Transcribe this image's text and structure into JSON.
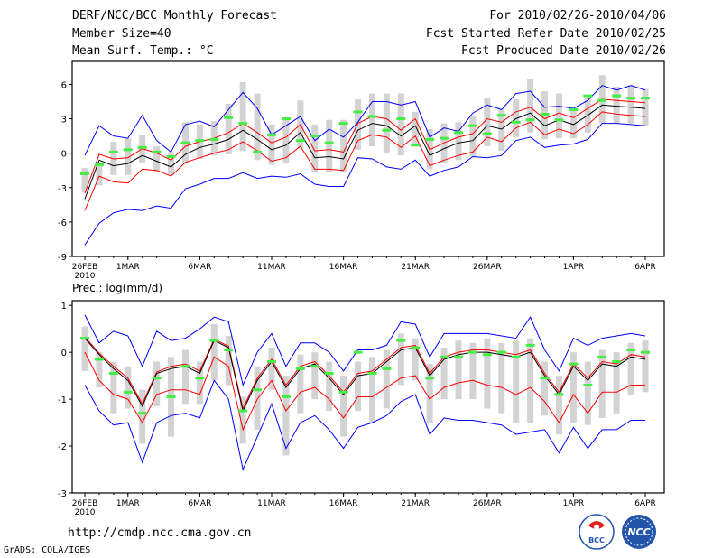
{
  "header": {
    "left": [
      "DERF/NCC/BCC Monthly Forecast",
      "Member Size=40",
      "Mean Surf. Temp.: °C"
    ],
    "right": [
      "For 2010/02/26-2010/04/06",
      "Fcst Started Refer Date 2010/02/25",
      "Fcst Produced Date 2010/02/26"
    ]
  },
  "footer": {
    "url": "http://cmdp.ncc.cma.gov.cn",
    "grads": "GrADS: COLA/IGES"
  },
  "logos": {
    "bcc": "BCC",
    "ncc": "NCC"
  },
  "colors": {
    "bar": "#d3d3d3",
    "median": "#000000",
    "band": "#ff0000",
    "envelope": "#0000ff",
    "observed": "#44ee44"
  },
  "chart_data": [
    {
      "type": "line",
      "title": "Mean Surf. Temp.: °C",
      "ylim": [
        -9,
        8
      ],
      "yticks": [
        6,
        3,
        0,
        -3,
        -6,
        -9
      ],
      "xlim": [
        0,
        39
      ],
      "xticks": [
        {
          "x": 0,
          "label": "26FEB",
          "year": "2010"
        },
        {
          "x": 3,
          "label": "1MAR"
        },
        {
          "x": 8,
          "label": "6MAR"
        },
        {
          "x": 13,
          "label": "11MAR"
        },
        {
          "x": 18,
          "label": "16MAR"
        },
        {
          "x": 23,
          "label": "21MAR"
        },
        {
          "x": 28,
          "label": "26MAR"
        },
        {
          "x": 34,
          "label": "1APR"
        },
        {
          "x": 39,
          "label": "6APR"
        }
      ],
      "series": {
        "median": [
          -4.0,
          -0.6,
          -1.1,
          -0.9,
          -0.2,
          -0.7,
          -1.2,
          -0.1,
          0.5,
          0.8,
          1.2,
          2.0,
          1.2,
          0.3,
          0.7,
          1.8,
          -0.4,
          -0.3,
          -0.5,
          2.0,
          2.6,
          2.4,
          1.5,
          2.4,
          -0.2,
          0.4,
          0.9,
          1.1,
          2.4,
          2.1,
          3.0,
          3.5,
          2.4,
          2.9,
          2.5,
          3.3,
          4.2,
          4.1,
          4.0,
          3.9
        ],
        "upper": [
          -3.5,
          -0.1,
          -0.5,
          -0.4,
          0.4,
          0.0,
          -0.6,
          0.6,
          1.0,
          1.3,
          1.8,
          2.6,
          1.8,
          0.9,
          1.4,
          2.5,
          0.2,
          0.3,
          0.1,
          2.6,
          3.2,
          3.0,
          2.0,
          3.0,
          0.3,
          0.9,
          1.4,
          1.7,
          3.0,
          2.7,
          3.6,
          4.0,
          3.0,
          3.5,
          3.1,
          3.9,
          4.7,
          4.6,
          4.5,
          4.4
        ],
        "lower": [
          -5.0,
          -2.0,
          -2.5,
          -2.6,
          -1.4,
          -1.5,
          -2.0,
          -0.8,
          -0.4,
          0.0,
          0.3,
          1.0,
          0.2,
          -0.7,
          -0.4,
          0.6,
          -1.4,
          -1.4,
          -1.5,
          1.1,
          1.6,
          1.4,
          0.5,
          1.5,
          -1.1,
          -0.6,
          -0.2,
          0.1,
          1.4,
          1.0,
          2.2,
          2.7,
          1.6,
          2.1,
          1.7,
          2.5,
          3.6,
          3.4,
          3.3,
          3.2
        ],
        "max": [
          -0.2,
          2.4,
          1.5,
          1.3,
          3.3,
          1.1,
          0.1,
          2.5,
          2.8,
          2.3,
          3.8,
          5.3,
          3.9,
          1.6,
          2.4,
          3.2,
          1.1,
          2.1,
          1.4,
          2.7,
          4.5,
          4.5,
          4.2,
          4.5,
          1.4,
          2.2,
          1.9,
          3.5,
          4.2,
          3.8,
          5.2,
          5.4,
          4.0,
          4.1,
          3.9,
          4.6,
          5.9,
          5.5,
          5.9,
          5.5
        ],
        "min": [
          -8.0,
          -6.1,
          -5.2,
          -4.9,
          -5.0,
          -4.6,
          -4.8,
          -3.1,
          -2.7,
          -2.2,
          -2.2,
          -1.7,
          -2.2,
          -2.0,
          -2.1,
          -1.8,
          -2.7,
          -2.9,
          -2.9,
          -0.4,
          -0.5,
          -1.2,
          -1.4,
          -0.6,
          -2.0,
          -1.5,
          -1.2,
          -0.3,
          -0.4,
          -0.2,
          1.1,
          1.4,
          0.5,
          0.7,
          0.8,
          1.2,
          2.6,
          2.6,
          2.5,
          2.4
        ],
        "bar_top": [
          -1.3,
          -0.8,
          1.0,
          1.3,
          1.6,
          0.6,
          0.1,
          2.7,
          2.5,
          2.8,
          4.3,
          6.2,
          5.2,
          2.5,
          2.9,
          4.6,
          2.5,
          2.9,
          2.9,
          4.7,
          5.2,
          5.2,
          5.2,
          3.6,
          2.1,
          2.6,
          2.7,
          3.2,
          4.8,
          3.8,
          4.7,
          6.5,
          5.4,
          5.2,
          4.0,
          4.8,
          6.8,
          5.8,
          5.9,
          5.6
        ],
        "bar_bottom": [
          -3.4,
          -2.8,
          -1.9,
          -1.9,
          -0.8,
          -1.7,
          -1.9,
          -0.8,
          -0.5,
          -0.2,
          -0.1,
          0.2,
          -0.6,
          -1.0,
          -0.9,
          0.4,
          -1.6,
          -1.7,
          -1.7,
          0.3,
          0.6,
          0.0,
          -0.2,
          0.6,
          -1.4,
          -0.9,
          -0.6,
          -0.3,
          0.6,
          0.2,
          1.4,
          1.8,
          1.2,
          1.3,
          1.3,
          1.8,
          2.6,
          2.6,
          2.6,
          2.4
        ],
        "observed": [
          -1.8,
          -1.0,
          0.1,
          0.3,
          0.5,
          0.1,
          -0.3,
          0.9,
          1.1,
          1.2,
          3.1,
          2.6,
          0.1,
          1.6,
          3.0,
          1.1,
          1.5,
          0.9,
          2.6,
          3.6,
          3.2,
          2.0,
          3.0,
          0.7,
          1.2,
          1.3,
          1.8,
          2.4,
          1.7,
          3.3,
          2.7,
          2.9,
          3.4,
          2.9,
          3.8,
          5.0,
          4.6,
          5.0,
          4.8,
          4.8
        ]
      }
    },
    {
      "type": "line",
      "title": "Prec.: log(mm/d)",
      "ylim": [
        -3,
        1.1
      ],
      "yticks": [
        1,
        0,
        -1,
        -2,
        -3
      ],
      "xlim": [
        0,
        39
      ],
      "xticks": [
        {
          "x": 0,
          "label": "26FEB",
          "year": "2010"
        },
        {
          "x": 3,
          "label": "1MAR"
        },
        {
          "x": 8,
          "label": "6MAR"
        },
        {
          "x": 13,
          "label": "11MAR"
        },
        {
          "x": 18,
          "label": "16MAR"
        },
        {
          "x": 23,
          "label": "21MAR"
        },
        {
          "x": 28,
          "label": "26MAR"
        },
        {
          "x": 34,
          "label": "1APR"
        },
        {
          "x": 39,
          "label": "6APR"
        }
      ],
      "series": {
        "median": [
          0.3,
          -0.05,
          -0.35,
          -0.6,
          -1.15,
          -0.45,
          -0.35,
          -0.3,
          -0.45,
          0.25,
          0.1,
          -1.25,
          -0.6,
          -0.2,
          -0.75,
          -0.35,
          -0.25,
          -0.55,
          -0.9,
          -0.5,
          -0.45,
          -0.2,
          0.05,
          0.1,
          -0.5,
          -0.15,
          -0.05,
          0.0,
          0.0,
          -0.05,
          -0.1,
          0.0,
          -0.5,
          -0.9,
          -0.3,
          -0.6,
          -0.25,
          -0.3,
          -0.1,
          -0.15
        ],
        "upper": [
          0.33,
          -0.02,
          -0.3,
          -0.55,
          -1.1,
          -0.42,
          -0.3,
          -0.25,
          -0.4,
          0.28,
          0.13,
          -1.2,
          -0.55,
          -0.15,
          -0.7,
          -0.3,
          -0.2,
          -0.5,
          -0.85,
          -0.45,
          -0.4,
          -0.15,
          0.1,
          0.15,
          -0.45,
          -0.1,
          0.0,
          0.05,
          0.05,
          0.0,
          -0.05,
          0.05,
          -0.45,
          -0.85,
          -0.25,
          -0.55,
          -0.2,
          -0.25,
          -0.05,
          -0.1
        ],
        "lower": [
          0.0,
          -0.6,
          -0.9,
          -1.0,
          -1.5,
          -0.9,
          -0.8,
          -0.8,
          -0.9,
          -0.1,
          -0.3,
          -1.65,
          -1.0,
          -0.6,
          -1.25,
          -0.85,
          -0.75,
          -1.0,
          -1.4,
          -0.95,
          -0.95,
          -0.75,
          -0.55,
          -0.5,
          -1.0,
          -0.75,
          -0.65,
          -0.6,
          -0.7,
          -0.75,
          -0.9,
          -0.75,
          -1.05,
          -1.5,
          -0.9,
          -1.3,
          -0.85,
          -0.85,
          -0.7,
          -0.7
        ],
        "max": [
          0.8,
          0.2,
          0.45,
          0.35,
          -0.3,
          0.45,
          0.25,
          0.3,
          0.5,
          0.75,
          0.65,
          -0.7,
          0.0,
          0.4,
          -0.3,
          0.2,
          0.2,
          0.0,
          -0.4,
          0.05,
          0.05,
          0.15,
          0.65,
          0.6,
          -0.1,
          0.4,
          0.4,
          0.4,
          0.4,
          0.35,
          0.3,
          0.75,
          0.05,
          -0.4,
          0.3,
          0.15,
          0.3,
          0.35,
          0.4,
          0.35
        ],
        "min": [
          -0.7,
          -1.25,
          -1.55,
          -1.5,
          -2.35,
          -1.5,
          -1.35,
          -1.3,
          -1.4,
          -0.6,
          -1.0,
          -2.5,
          -1.8,
          -1.1,
          -2.05,
          -1.5,
          -1.35,
          -1.65,
          -2.05,
          -1.6,
          -1.5,
          -1.35,
          -1.05,
          -0.9,
          -1.75,
          -1.4,
          -1.45,
          -1.45,
          -1.5,
          -1.55,
          -1.75,
          -1.7,
          -1.65,
          -2.15,
          -1.6,
          -2.05,
          -1.65,
          -1.65,
          -1.45,
          -1.45
        ],
        "bar_top": [
          0.55,
          0.0,
          -0.2,
          -0.3,
          -0.8,
          -0.2,
          -0.1,
          0.05,
          -0.2,
          0.6,
          0.35,
          -0.95,
          -0.3,
          0.1,
          -0.5,
          -0.05,
          0.0,
          -0.2,
          -0.5,
          -0.2,
          -0.1,
          0.05,
          0.4,
          0.3,
          -0.25,
          0.1,
          0.25,
          0.2,
          0.3,
          0.2,
          0.25,
          0.3,
          -0.2,
          -0.5,
          0.0,
          -0.2,
          0.05,
          0.0,
          0.2,
          0.25
        ],
        "bar_bottom": [
          -0.4,
          -0.75,
          -1.3,
          -1.2,
          -1.95,
          -1.15,
          -1.8,
          -1.1,
          -1.1,
          -0.6,
          -0.7,
          -1.95,
          -1.65,
          -0.8,
          -2.2,
          -1.3,
          -1.0,
          -1.25,
          -1.8,
          -1.25,
          -1.5,
          -1.2,
          -0.7,
          -0.6,
          -1.5,
          -1.0,
          -1.0,
          -1.0,
          -1.2,
          -1.3,
          -1.5,
          -1.5,
          -1.35,
          -1.75,
          -1.5,
          -1.55,
          -1.4,
          -1.3,
          -0.9,
          -0.85
        ],
        "observed": [
          0.3,
          -0.15,
          -0.45,
          -0.85,
          -1.3,
          -0.55,
          -0.95,
          -0.3,
          -0.55,
          0.25,
          0.05,
          -1.25,
          -0.8,
          -0.2,
          -0.95,
          -0.35,
          -0.3,
          -0.45,
          -0.85,
          0.0,
          -0.45,
          -0.35,
          0.25,
          0.1,
          -0.55,
          -0.1,
          -0.1,
          0.0,
          -0.05,
          0.0,
          -0.1,
          0.15,
          -0.55,
          -0.9,
          -0.25,
          -0.7,
          -0.1,
          -0.2,
          0.05,
          0.0
        ]
      }
    }
  ]
}
